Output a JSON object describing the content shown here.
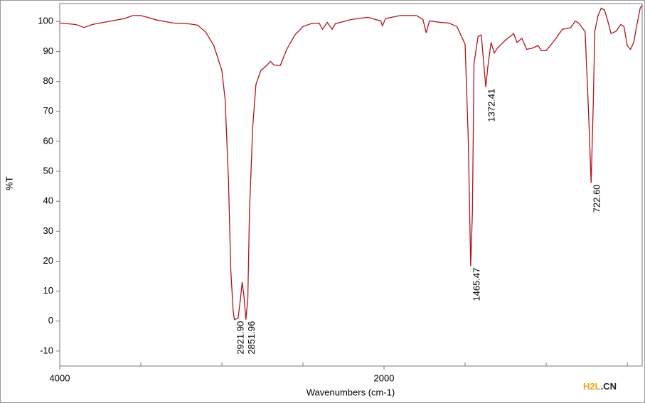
{
  "chart_data": {
    "type": "line",
    "x_label": "Wavenumbers (cm-1)",
    "y_label": "%T",
    "x": [
      4000,
      3900,
      3850,
      3800,
      3700,
      3600,
      3550,
      3500,
      3400,
      3300,
      3200,
      3150,
      3100,
      3050,
      3000,
      2980,
      2960,
      2945,
      2930,
      2921.9,
      2900,
      2885,
      2875,
      2865,
      2851.96,
      2840,
      2830,
      2810,
      2790,
      2760,
      2720,
      2700,
      2680,
      2640,
      2600,
      2550,
      2500,
      2450,
      2400,
      2380,
      2350,
      2320,
      2300,
      2200,
      2100,
      2020,
      2010,
      1990,
      1900,
      1800,
      1760,
      1740,
      1720,
      1650,
      1600,
      1550,
      1500,
      1480,
      1465.47,
      1455,
      1445,
      1420,
      1400,
      1385,
      1372.41,
      1360,
      1340,
      1320,
      1300,
      1250,
      1200,
      1180,
      1150,
      1120,
      1080,
      1050,
      1030,
      1000,
      950,
      900,
      850,
      820,
      800,
      760,
      740,
      722.6,
      710,
      700,
      680,
      660,
      640,
      620,
      600,
      570,
      540,
      520,
      500,
      480,
      460,
      440,
      420,
      408
    ],
    "values": [
      99.5,
      99,
      98,
      99,
      100,
      101,
      102,
      102,
      100.5,
      99.5,
      99.2,
      98.8,
      96.5,
      92,
      83.6,
      74,
      48,
      17,
      3,
      0.5,
      1,
      7.6,
      13,
      9,
      0.5,
      7.6,
      36,
      64.6,
      79,
      83.6,
      85.5,
      86.7,
      85.5,
      85.3,
      90.7,
      95.5,
      98.3,
      99.3,
      99.5,
      97.4,
      99.7,
      97.4,
      99.3,
      100.7,
      101.4,
      100.2,
      98.6,
      101,
      102,
      102,
      100.7,
      96.2,
      100.2,
      99.7,
      99.5,
      98.3,
      92.4,
      60,
      18.3,
      36,
      86,
      95,
      95.5,
      86,
      78.1,
      84.8,
      93,
      89.5,
      91.2,
      93.8,
      96,
      93,
      94.4,
      90.7,
      91.2,
      92,
      90.3,
      90.3,
      93.6,
      97.4,
      97.9,
      100.2,
      99.5,
      96.7,
      71.7,
      46.1,
      71.7,
      96.7,
      102,
      104.5,
      103.8,
      100.2,
      96,
      96.7,
      99,
      98.3,
      92,
      90.7,
      93,
      99,
      104.5,
      105.5
    ],
    "color": "#b0141c",
    "xlim": [
      4000,
      408
    ],
    "xticks": [
      4000,
      2000
    ],
    "x_minor_ticks": [
      3500,
      3000,
      2500,
      1500,
      1000,
      500
    ],
    "ylim": [
      -15,
      106
    ],
    "yticks": [
      -10,
      0,
      10,
      20,
      30,
      40,
      50,
      60,
      70,
      80,
      90,
      100
    ],
    "annotations": [
      {
        "label": "2921.90",
        "x": 2921.9,
        "y": 0.5
      },
      {
        "label": "2851.96",
        "x": 2851.96,
        "y": 0.5
      },
      {
        "label": "1465.47",
        "x": 1465.47,
        "y": 18.3
      },
      {
        "label": "1372.41",
        "x": 1372.41,
        "y": 78.1
      },
      {
        "label": "722.60",
        "x": 722.6,
        "y": 46.1
      }
    ],
    "watermark": [
      "H2L",
      ".CN"
    ]
  }
}
